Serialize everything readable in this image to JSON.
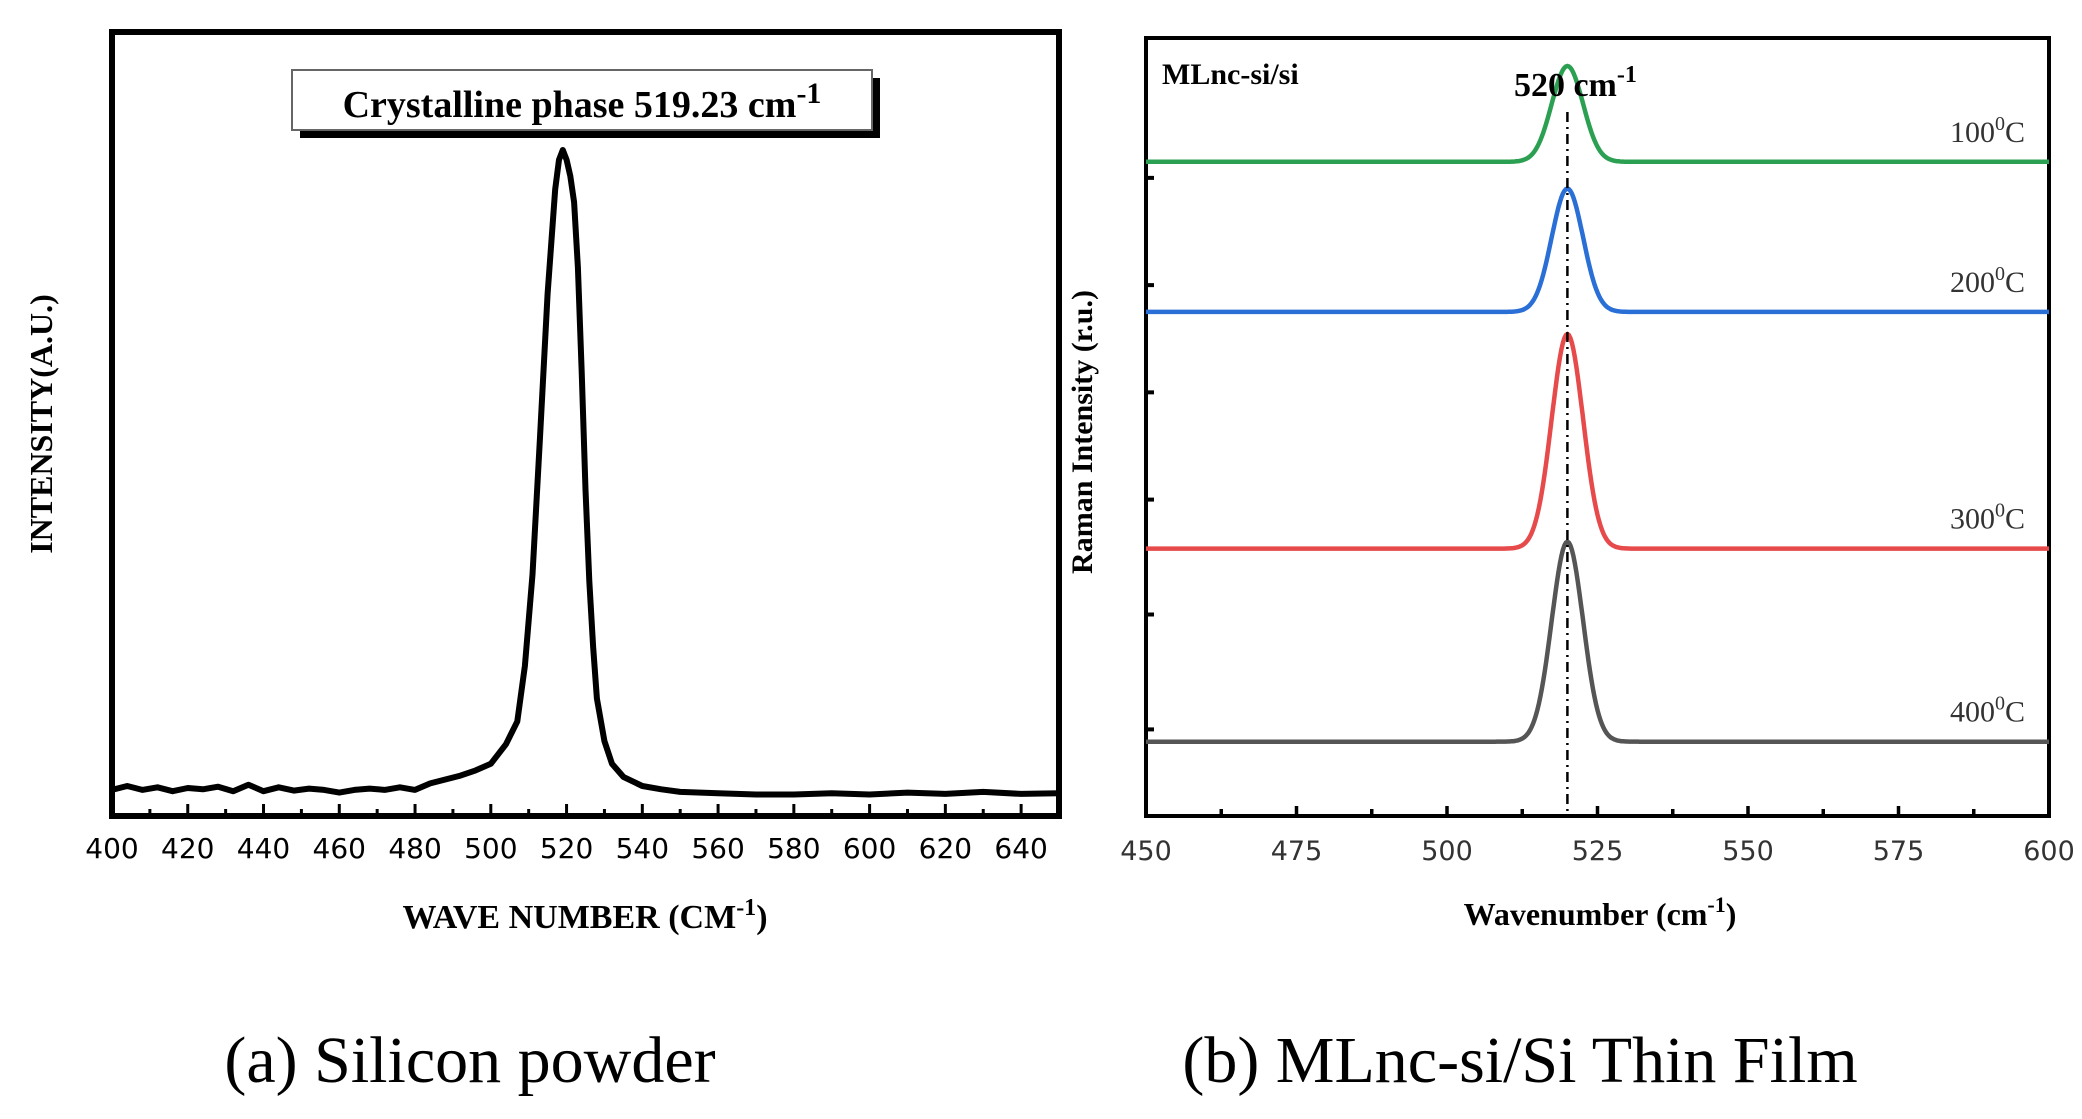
{
  "chart_data": [
    {
      "type": "line",
      "title": "",
      "caption": "(a) Silicon powder",
      "xlabel": "WAVE NUMBER (CM",
      "xlabel_sup": "-1",
      "xlabel_suffix": ")",
      "ylabel": "INTENSITY(A.U.)",
      "xlim": [
        400,
        650
      ],
      "ylim": [
        0,
        100
      ],
      "xticks": [
        400,
        420,
        440,
        460,
        480,
        500,
        520,
        540,
        560,
        580,
        600,
        620,
        640
      ],
      "annotation": {
        "text": "Crystalline phase  519.23 cm",
        "sup": "-1"
      },
      "grid": false,
      "series": [
        {
          "name": "Silicon powder",
          "color": "#000000",
          "x": [
            400,
            404,
            408,
            412,
            416,
            420,
            424,
            428,
            432,
            436,
            440,
            444,
            448,
            452,
            456,
            460,
            464,
            468,
            472,
            476,
            480,
            484,
            488,
            492,
            496,
            500,
            504,
            507,
            509,
            511,
            513,
            515,
            517,
            518,
            519,
            520,
            521,
            522,
            523,
            524,
            525,
            526,
            527,
            528,
            530,
            532,
            535,
            540,
            545,
            550,
            560,
            570,
            580,
            590,
            600,
            610,
            620,
            630,
            640,
            650
          ],
          "y": [
            2.0,
            2.6,
            2.0,
            2.4,
            1.8,
            2.3,
            2.1,
            2.5,
            1.8,
            2.8,
            1.8,
            2.4,
            1.9,
            2.2,
            2.0,
            1.6,
            2.0,
            2.2,
            2.0,
            2.4,
            2.0,
            3.0,
            3.6,
            4.2,
            5.0,
            6.0,
            9.0,
            12.5,
            21.0,
            35.0,
            56.0,
            78.0,
            94.0,
            98.5,
            100.0,
            98.5,
            96.0,
            92.0,
            82.0,
            66.0,
            48.0,
            34.0,
            24.0,
            16.0,
            9.5,
            6.0,
            4.0,
            2.6,
            2.1,
            1.7,
            1.5,
            1.3,
            1.3,
            1.5,
            1.3,
            1.6,
            1.4,
            1.7,
            1.4,
            1.5
          ]
        }
      ]
    },
    {
      "type": "line",
      "title": "",
      "caption": "(b) MLnc-si/Si Thin Film",
      "inset_label": "MLnc-si/si",
      "xlabel": "Wavenumber (cm",
      "xlabel_sup": "-1",
      "xlabel_suffix": ")",
      "ylabel": "Raman Intensity (r.u.)",
      "xlim": [
        450,
        600
      ],
      "ylim": [
        0,
        100
      ],
      "xticks": [
        450,
        475,
        500,
        525,
        550,
        575,
        600
      ],
      "reference_line": {
        "x": 520,
        "label": "520 cm",
        "label_sup": "-1"
      },
      "grid": false,
      "series": [
        {
          "name": "100",
          "name_sup": "0",
          "name_suffix": "C",
          "color": "#2ca052",
          "center": 520.0,
          "width": 2.6,
          "baseline": 84.1,
          "height": 12.5
        },
        {
          "name": "200",
          "name_sup": "0",
          "name_suffix": "C",
          "color": "#2a6fd6",
          "center": 520.0,
          "width": 2.6,
          "baseline": 64.5,
          "height": 16.1
        },
        {
          "name": "300",
          "name_sup": "0",
          "name_suffix": "C",
          "color": "#e64a4a",
          "center": 520.0,
          "width": 2.6,
          "baseline": 33.6,
          "height": 28.0
        },
        {
          "name": "400",
          "name_sup": "0",
          "name_suffix": "C",
          "color": "#555555",
          "center": 520.0,
          "width": 2.6,
          "baseline": 8.4,
          "height": 26.1
        }
      ]
    }
  ]
}
